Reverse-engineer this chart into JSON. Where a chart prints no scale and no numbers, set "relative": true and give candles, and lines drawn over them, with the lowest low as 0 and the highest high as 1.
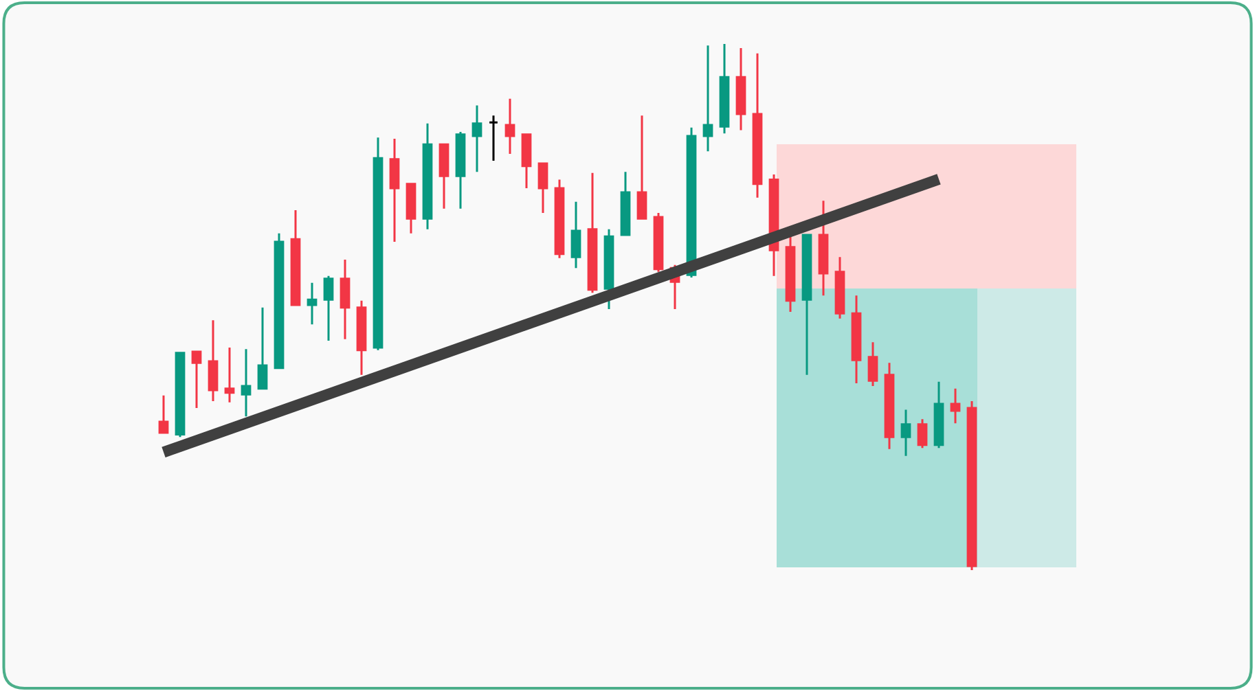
{
  "chart_data": {
    "type": "candlestick",
    "relative": true,
    "categories": [
      null,
      null,
      null,
      null,
      null,
      null,
      null,
      null,
      null,
      null,
      null,
      null,
      null,
      null,
      null,
      null,
      null,
      null,
      null,
      null,
      null,
      null,
      null,
      null,
      null,
      null,
      null,
      null,
      null,
      null,
      null,
      null,
      null,
      null,
      null,
      null,
      null,
      null,
      null,
      null,
      null,
      null,
      null,
      null,
      null,
      null,
      null,
      null,
      null,
      null
    ],
    "ohlc": [
      [
        0.282,
        0.332,
        0.261,
        0.261
      ],
      [
        0.258,
        0.413,
        0.253,
        0.413
      ],
      [
        0.415,
        0.415,
        0.308,
        0.394
      ],
      [
        0.397,
        0.475,
        0.321,
        0.342
      ],
      [
        0.345,
        0.423,
        0.319,
        0.337
      ],
      [
        0.334,
        0.42,
        0.292,
        0.35
      ],
      [
        0.345,
        0.499,
        0.345,
        0.389
      ],
      [
        0.384,
        0.64,
        0.384,
        0.624
      ],
      [
        0.629,
        0.684,
        0.504,
        0.504
      ],
      [
        0.504,
        0.546,
        0.467,
        0.514
      ],
      [
        0.514,
        0.559,
        0.436,
        0.554
      ],
      [
        0.554,
        0.59,
        0.439,
        0.499
      ],
      [
        0.499,
        0.512,
        0.371,
        0.418
      ],
      [
        0.423,
        0.822,
        0.418,
        0.783
      ],
      [
        0.781,
        0.82,
        0.624,
        0.726
      ],
      [
        0.734,
        0.734,
        0.64,
        0.668
      ],
      [
        0.668,
        0.849,
        0.648,
        0.809
      ],
      [
        0.809,
        0.809,
        0.687,
        0.749
      ],
      [
        0.749,
        0.833,
        0.687,
        0.828
      ],
      [
        0.825,
        0.883,
        0.757,
        0.849
      ],
      [
        0.851,
        0.864,
        0.778,
        0.851
      ],
      [
        0.846,
        0.896,
        0.791,
        0.825
      ],
      [
        0.828,
        0.828,
        0.726,
        0.768
      ],
      [
        0.773,
        0.773,
        0.679,
        0.726
      ],
      [
        0.726,
        0.742,
        0.593,
        0.601
      ],
      [
        0.595,
        0.7,
        0.574,
        0.645
      ],
      [
        0.648,
        0.755,
        0.527,
        0.533
      ],
      [
        0.535,
        0.648,
        0.496,
        0.634
      ],
      [
        0.637,
        0.757,
        0.637,
        0.718
      ],
      [
        0.718,
        0.864,
        0.668,
        0.668
      ],
      [
        0.671,
        0.679,
        0.567,
        0.572
      ],
      [
        0.574,
        0.58,
        0.496,
        0.548
      ],
      [
        0.561,
        0.841,
        0.556,
        0.825
      ],
      [
        0.825,
        0.997,
        0.796,
        0.846
      ],
      [
        0.843,
        1.0,
        0.83,
        0.937
      ],
      [
        0.937,
        0.992,
        0.836,
        0.867
      ],
      [
        0.867,
        0.982,
        0.708,
        0.734
      ],
      [
        0.742,
        0.752,
        0.559,
        0.608
      ],
      [
        0.614,
        0.634,
        0.491,
        0.512
      ],
      [
        0.514,
        0.637,
        0.371,
        0.637
      ],
      [
        0.637,
        0.702,
        0.522,
        0.564
      ],
      [
        0.567,
        0.595,
        0.478,
        0.488
      ],
      [
        0.488,
        0.522,
        0.355,
        0.399
      ],
      [
        0.405,
        0.433,
        0.35,
        0.36
      ],
      [
        0.371,
        0.394,
        0.23,
        0.253
      ],
      [
        0.253,
        0.305,
        0.217,
        0.277
      ],
      [
        0.277,
        0.287,
        0.232,
        0.238
      ],
      [
        0.238,
        0.358,
        0.232,
        0.316
      ],
      [
        0.316,
        0.345,
        0.279,
        0.303
      ],
      [
        0.308,
        0.321,
        0,
        0.008
      ]
    ],
    "colors": [
      "#f23645",
      "#089981",
      "#f23645",
      "#f23645",
      "#f23645",
      "#089981",
      "#089981",
      "#089981",
      "#f23645",
      "#089981",
      "#089981",
      "#f23645",
      "#f23645",
      "#089981",
      "#f23645",
      "#f23645",
      "#089981",
      "#f23645",
      "#089981",
      "#089981",
      "#000000",
      "#f23645",
      "#f23645",
      "#f23645",
      "#f23645",
      "#089981",
      "#f23645",
      "#089981",
      "#089981",
      "#f23645",
      "#f23645",
      "#f23645",
      "#089981",
      "#089981",
      "#089981",
      "#f23645",
      "#f23645",
      "#f23645",
      "#f23645",
      "#089981",
      "#f23645",
      "#f23645",
      "#f23645",
      "#f23645",
      "#f23645",
      "#089981",
      "#f23645",
      "#089981",
      "#f23645",
      "#f23645"
    ],
    "series": [
      {
        "type": "line",
        "color": "#404040",
        "values": [
          0.224,
          null,
          null,
          null,
          null,
          null,
          null,
          null,
          null,
          null,
          null,
          null,
          null,
          null,
          null,
          null,
          null,
          null,
          null,
          null,
          null,
          null,
          null,
          null,
          null,
          null,
          null,
          null,
          null,
          null,
          null,
          null,
          null,
          null,
          null,
          null,
          null,
          null,
          null,
          null,
          null,
          null,
          null,
          null,
          null,
          null,
          null,
          0.743,
          null,
          null
        ]
      }
    ]
  }
}
